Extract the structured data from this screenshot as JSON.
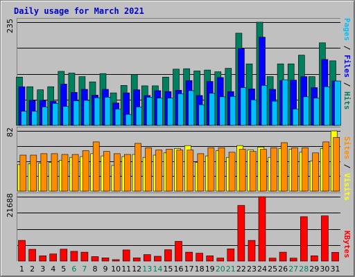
{
  "chart_data": {
    "type": "bar",
    "title": "Daily usage for March 2021",
    "days": [
      "1",
      "2",
      "3",
      "4",
      "5",
      "6",
      "7",
      "8",
      "9",
      "10",
      "11",
      "12",
      "13",
      "14",
      "15",
      "16",
      "17",
      "18",
      "19",
      "20",
      "21",
      "22",
      "23",
      "24",
      "25",
      "26",
      "27",
      "28",
      "29",
      "30",
      "31"
    ],
    "weekend_days": [
      "6",
      "7",
      "13",
      "14",
      "20",
      "21",
      "27",
      "28"
    ],
    "panels": [
      {
        "max_label": "235",
        "ylim": [
          0,
          235
        ],
        "axis_label": {
          "s1": "Pages",
          "sep1": " / ",
          "s2": "Files",
          "sep2": " / ",
          "s3": "Hits"
        },
        "series": [
          {
            "name": "Hits",
            "color": "#00805f",
            "values": [
              110,
              88,
              81,
              88,
              123,
              119,
              111,
              99,
              118,
              74,
              91,
              116,
              90,
              90,
              110,
              128,
              129,
              124,
              126,
              122,
              130,
              210,
              140,
              235,
              111,
              140,
              140,
              160,
              111,
              188,
              147
            ]
          },
          {
            "name": "Files",
            "color": "#0000ff",
            "values": [
              88,
              57,
              57,
              55,
              94,
              75,
              82,
              69,
              82,
              51,
              74,
              81,
              68,
              79,
              77,
              80,
              102,
              68,
              100,
              109,
              77,
              175,
              83,
              201,
              82,
              102,
              103,
              111,
              86,
              150,
              101
            ]
          },
          {
            "name": "Pages",
            "color": "#00bfff",
            "values": [
              32,
              32,
              42,
              50,
              43,
              56,
              57,
              63,
              64,
              37,
              25,
              42,
              64,
              62,
              62,
              72,
              79,
              47,
              73,
              65,
              66,
              86,
              58,
              91,
              55,
              104,
              37,
              65,
              62,
              88,
              101
            ]
          }
        ]
      },
      {
        "max_label": "82",
        "ylim": [
          0,
          82
        ],
        "axis_label": {
          "s1": "Sites",
          "sep1": " / ",
          "s2": "Visits"
        },
        "series": [
          {
            "name": "Visits",
            "color": "#ffff00",
            "values": [
              36,
              37,
              38,
              39,
              42,
              46,
              47,
              51,
              48,
              35,
              47,
              50,
              46,
              49,
              52,
              58,
              62,
              39,
              48,
              55,
              46,
              62,
              56,
              60,
              46,
              58,
              57,
              53,
              41,
              58,
              82
            ]
          },
          {
            "name": "Sites",
            "color": "#ff8c00",
            "values": [
              49,
              49,
              51,
              51,
              50,
              50,
              55,
              67,
              54,
              51,
              50,
              65,
              59,
              56,
              57,
              56,
              56,
              51,
              59,
              59,
              53,
              57,
              54,
              57,
              59,
              66,
              59,
              59,
              52,
              67,
              73
            ]
          }
        ]
      },
      {
        "max_label": "21688",
        "ylim": [
          0,
          21688
        ],
        "axis_label": {
          "s1": "KBytes"
        },
        "series": [
          {
            "name": "KBytes",
            "color": "#ff0000",
            "values": [
              6978,
              3968,
              1781,
              2394,
              4000,
              3285,
              3011,
              1509,
              1097,
              479,
              3750,
              1092,
              2189,
              1640,
              3833,
              6636,
              3011,
              2668,
              1781,
              1020,
              4108,
              18755,
              6978,
              21688,
              1000,
              3011,
              1000,
              14960,
              1781,
              15235,
              2943
            ]
          }
        ]
      }
    ]
  }
}
